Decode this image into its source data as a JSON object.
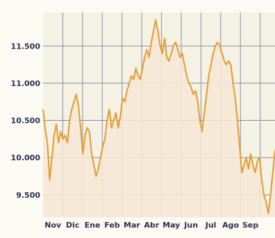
{
  "chart_data": {
    "type": "area",
    "title": "",
    "xlabel": "",
    "ylabel": "",
    "ylim": [
      9200,
      11950
    ],
    "yticks": [
      9500,
      10000,
      10500,
      11000,
      11500
    ],
    "ytick_labels": [
      "9.500",
      "10.000",
      "10.500",
      "11.000",
      "11.500"
    ],
    "month_labels": [
      "Nov",
      "Dic",
      "Ene",
      "Feb",
      "Mar",
      "Abr",
      "May",
      "Jun",
      "Jul",
      "Ago",
      "Sep"
    ],
    "grid": true,
    "colors": {
      "line": "#e59a2e",
      "fill": "#f6e7d5",
      "grid": "#8a8d9c",
      "background": "#fbfaf3"
    },
    "series": [
      {
        "values": [
          10650,
          10380,
          10180,
          9700,
          10000,
          10300,
          10450,
          10200,
          10350,
          10250,
          10300,
          10200,
          10500,
          10650,
          10750,
          10850,
          10700,
          10400,
          10050,
          10300,
          10400,
          10350,
          10050,
          9900,
          9750,
          9850,
          10000,
          10150,
          10250,
          10500,
          10650,
          10400,
          10500,
          10600,
          10400,
          10550,
          10800,
          10750,
          10900,
          11000,
          11100,
          11050,
          11200,
          11100,
          11050,
          11200,
          11350,
          11450,
          11350,
          11550,
          11700,
          11850,
          11700,
          11500,
          11400,
          11600,
          11350,
          11300,
          11400,
          11500,
          11550,
          11450,
          11350,
          11400,
          11250,
          11100,
          11000,
          10950,
          10850,
          10900,
          10750,
          10500,
          10350,
          10600,
          10850,
          11100,
          11250,
          11400,
          11500,
          11550,
          11500,
          11400,
          11300,
          11250,
          11300,
          11250,
          11000,
          10800,
          10500,
          10150,
          9800,
          9900,
          10000,
          9850,
          10050,
          9900,
          9800,
          9950,
          10000,
          9700,
          9500,
          9400,
          9250,
          9500,
          9800,
          10100
        ]
      }
    ]
  }
}
